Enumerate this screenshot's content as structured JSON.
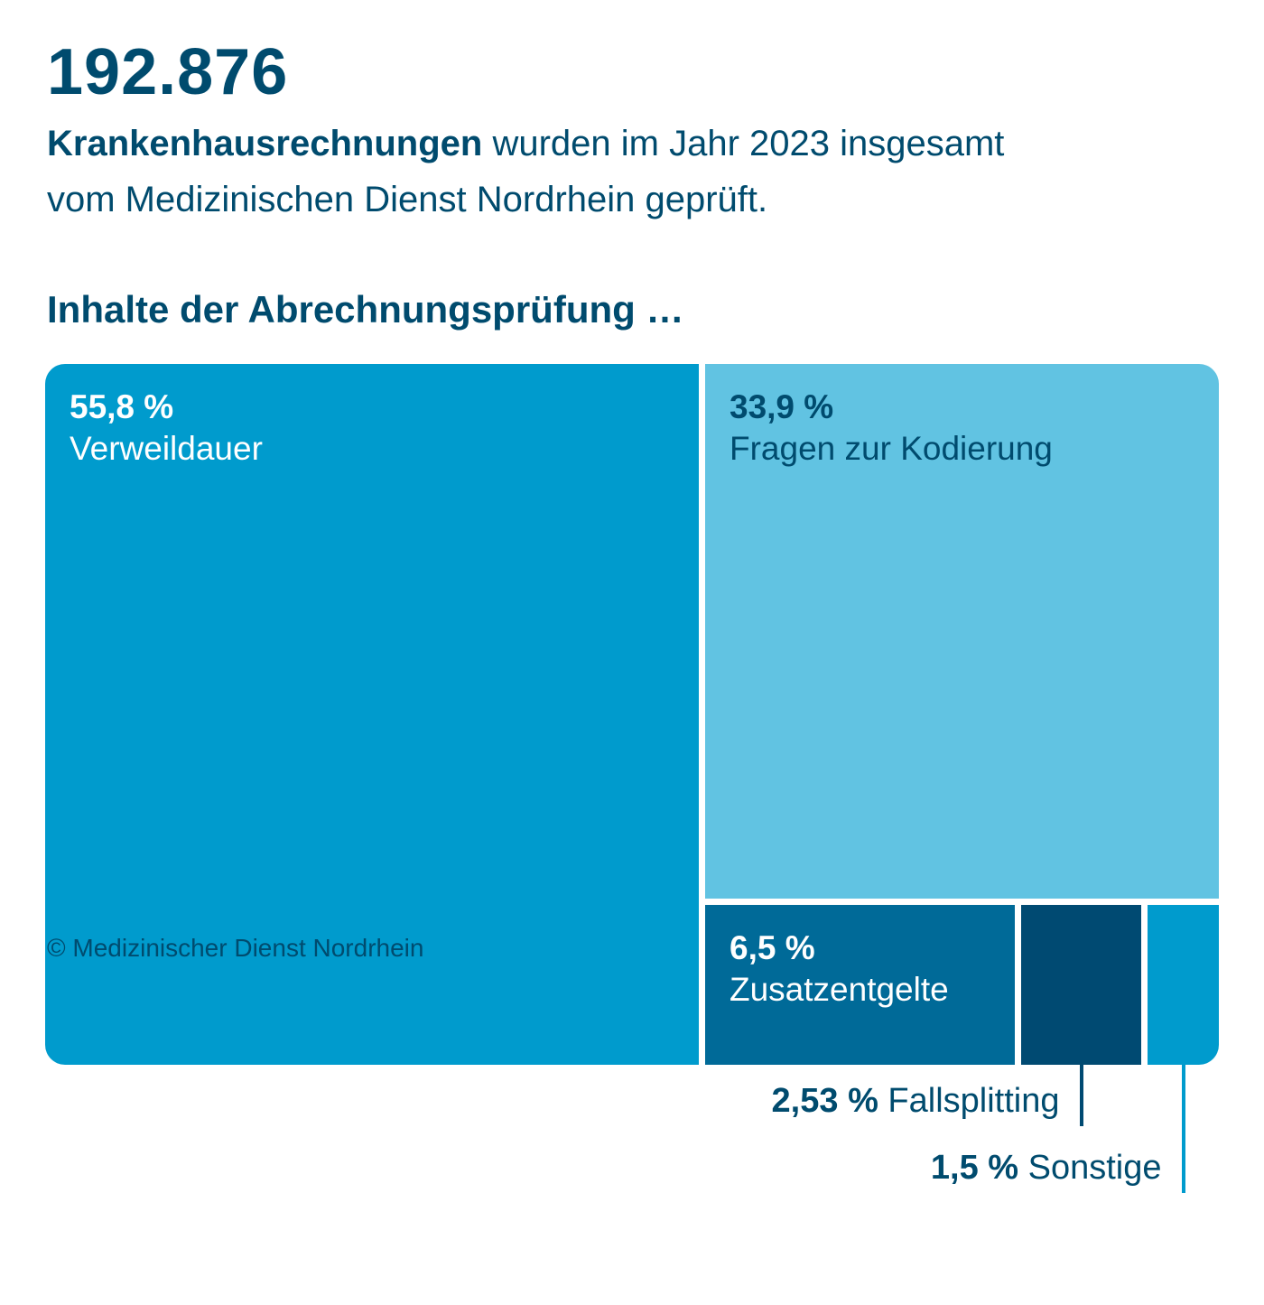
{
  "header": {
    "total": "192.876",
    "subtitle_bold": "Krankenhausrechnungen",
    "subtitle_rest": "wurden im Jahr 2023 insgesamt",
    "subtitle_line2": "vom Medizinischen Dienst Nordrhein geprüft."
  },
  "chart_title": "Inhalte der Abrechnungsprüfung …",
  "chart_data": {
    "type": "treemap",
    "unit": "%",
    "items": [
      {
        "label": "Verweildauer",
        "value": 55.8,
        "value_text": "55,8 %",
        "color": "#009bcd",
        "text_color": "#ffffff"
      },
      {
        "label": "Fragen zur Kodierung",
        "value": 33.9,
        "value_text": "33,9 %",
        "color": "#61c3e2",
        "text_color": "#004b6e"
      },
      {
        "label": "Zusatzentgelte",
        "value": 6.5,
        "value_text": "6,5 %",
        "color": "#006a98",
        "text_color": "#ffffff"
      },
      {
        "label": "Fallsplitting",
        "value": 2.53,
        "value_text": "2,53 %",
        "color": "#004a72",
        "text_color": "#004b6e"
      },
      {
        "label": "Sonstige",
        "value": 1.5,
        "value_text": "1,5 %",
        "color": "#009bcd",
        "text_color": "#004b6e"
      }
    ]
  },
  "footer": {
    "copyright": "© Medizinischer Dienst Nordrhein"
  }
}
